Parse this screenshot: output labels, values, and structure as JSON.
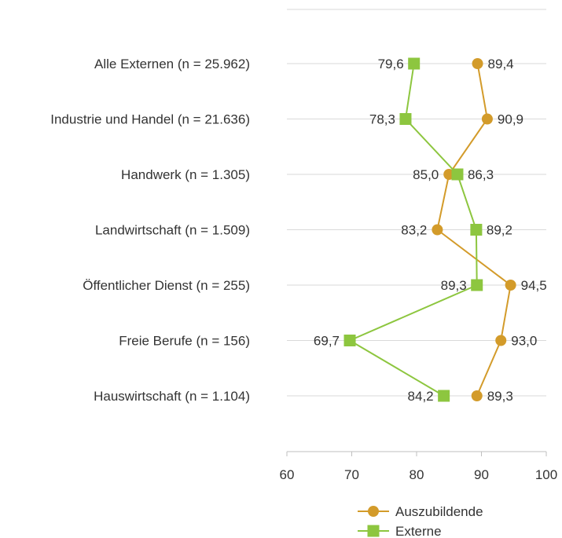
{
  "chart_data": {
    "type": "line",
    "orientation": "horizontal",
    "categories": [
      "Alle Externen (n = 25.962)",
      "Industrie und Handel (n = 21.636)",
      "Handwerk (n = 1.305)",
      "Landwirtschaft (n = 1.509)",
      "Öffentlicher Dienst (n = 255)",
      "Freie Berufe (n = 156)",
      "Hauswirtschaft (n = 1.104)"
    ],
    "series": [
      {
        "name": "Auszubildende",
        "color": "#D39B2A",
        "marker": "circle",
        "values": [
          89.4,
          90.9,
          85.0,
          83.2,
          94.5,
          93.0,
          89.3
        ],
        "labels": [
          "89,4",
          "90,9",
          "85,0",
          "83,2",
          "94,5",
          "93,0",
          "89,3"
        ]
      },
      {
        "name": "Externe",
        "color": "#8DC63F",
        "marker": "square",
        "values": [
          79.6,
          78.3,
          86.3,
          89.2,
          89.3,
          69.7,
          84.2
        ],
        "labels": [
          "79,6",
          "78,3",
          "86,3",
          "89,2",
          "89,3",
          "69,7",
          "84,2"
        ]
      }
    ],
    "xlim": [
      60,
      100
    ],
    "xticks": [
      "60",
      "70",
      "80",
      "90",
      "100"
    ],
    "grid": true,
    "legend_position": "bottom"
  }
}
